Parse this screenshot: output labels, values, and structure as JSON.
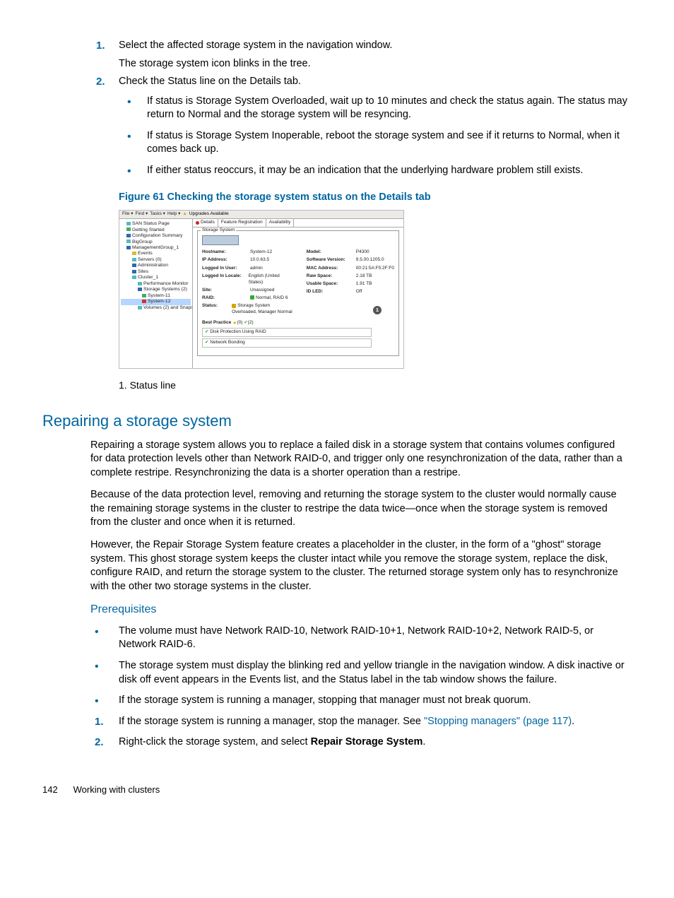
{
  "steps_top": [
    {
      "num": "1.",
      "lines": [
        "Select the affected storage system in the navigation window.",
        "The storage system icon blinks in the tree."
      ]
    },
    {
      "num": "2.",
      "lines": [
        "Check the Status line on the Details tab."
      ],
      "sub": [
        "If status is Storage System Overloaded, wait up to 10 minutes and check the status again. The status may return to Normal and the storage system will be resyncing.",
        "If status is Storage System Inoperable, reboot the storage system and see if it returns to Normal, when it comes back up.",
        "If either status reoccurs, it may be an indication that the underlying hardware problem still exists."
      ]
    }
  ],
  "figure_caption": "Figure 61 Checking the storage system status on the Details tab",
  "menubar": {
    "items": [
      "File ▾",
      "Find ▾",
      "Tasks ▾",
      "Help ▾"
    ],
    "upgrades": "Upgrades Available"
  },
  "tree": [
    {
      "cls": "i1",
      "icon": "icon-cyan",
      "t": "SAN Status Page"
    },
    {
      "cls": "i1",
      "icon": "icon-grn",
      "t": "Getting Started"
    },
    {
      "cls": "i1",
      "icon": "icon-blue",
      "t": "Configuration Summary"
    },
    {
      "cls": "i1",
      "icon": "icon-cyan",
      "t": "BigGroup"
    },
    {
      "cls": "i1",
      "icon": "icon-blue",
      "t": "ManagementGroup_1"
    },
    {
      "cls": "i2",
      "icon": "icon-yel",
      "t": "Events"
    },
    {
      "cls": "i2",
      "icon": "icon-cyan",
      "t": "Servers (0)"
    },
    {
      "cls": "i2",
      "icon": "icon-blue",
      "t": "Administration"
    },
    {
      "cls": "i2",
      "icon": "icon-blue",
      "t": "Sites"
    },
    {
      "cls": "i2",
      "icon": "icon-cyan",
      "t": "Cluster_1"
    },
    {
      "cls": "i3",
      "icon": "icon-cyan",
      "t": "Performance Monitor"
    },
    {
      "cls": "i3",
      "icon": "icon-blue",
      "t": "Storage Systems (2)"
    },
    {
      "cls": "i4",
      "icon": "icon-grn",
      "t": "System-11"
    },
    {
      "cls": "i4 sel",
      "icon": "icon-red",
      "t": "System-12"
    },
    {
      "cls": "i3",
      "icon": "icon-cyan",
      "t": "Volumes (2) and Snaps…"
    }
  ],
  "tabs": [
    {
      "label": "Details",
      "active": true,
      "dot": true
    },
    {
      "label": "Feature Registration",
      "active": false
    },
    {
      "label": "Availability",
      "active": false
    }
  ],
  "fs_legend": "Storage System",
  "kv_left": [
    {
      "k": "Hostname:",
      "v": "System-12",
      "ico": "icon-blue"
    },
    {
      "k": "IP Address:",
      "v": "10.0.63.5"
    },
    {
      "k": "Logged In User:",
      "v": "admin"
    },
    {
      "k": "Logged In Locale:",
      "v": "English (United States)"
    },
    {
      "k": "Site:",
      "v": "Unassigned"
    },
    {
      "k": "RAID:",
      "v": "Normal, RAID 6",
      "ico": "status-ico"
    },
    {
      "k": "Status:",
      "v": "Storage System Overloaded, Manager Normal",
      "ico": "status-ico warn"
    }
  ],
  "kv_right": [
    {
      "k": "Model:",
      "v": "P4300"
    },
    {
      "k": "Software Version:",
      "v": "9.5.00.1205.0"
    },
    {
      "k": "MAC Address:",
      "v": "00:21:5A:F5:2F:F0"
    },
    {
      "k": "Raw Space:",
      "v": "2.18 TB"
    },
    {
      "k": "Usable Space:",
      "v": "1.91 TB"
    },
    {
      "k": "ID LED:",
      "v": "Off"
    }
  ],
  "bp_label": "Best Practice",
  "bp_warn": "(0)",
  "bp_ok": "(2)",
  "bp_items": [
    "Disk Protection Using RAID",
    "Network Bonding"
  ],
  "callout": "1",
  "caption_item": "1. Status line",
  "h2": "Repairing a storage system",
  "paras": [
    "Repairing a storage system allows you to replace a failed disk in a storage system that contains volumes configured for data protection levels other than Network RAID-0, and trigger only one resynchronization of the data, rather than a complete restripe. Resynchronizing the data is a shorter operation than a restripe.",
    "Because of the data protection level, removing and returning the storage system to the cluster would normally cause the remaining storage systems in the cluster to restripe the data twice—once when the storage system is removed from the cluster and once when it is returned.",
    "However, the Repair Storage System feature creates a placeholder in the cluster, in the form of a \"ghost\" storage system. This ghost storage system keeps the cluster intact while you remove the storage system, replace the disk, configure RAID, and return the storage system to the cluster. The returned storage system only has to resynchronize with the other two storage systems in the cluster."
  ],
  "h3": "Prerequisites",
  "prereq_bullets": [
    "The volume must have Network RAID-10, Network RAID-10+1, Network RAID-10+2, Network RAID-5, or Network RAID-6.",
    "The storage system must display the blinking red and yellow triangle in the navigation window. A disk inactive or disk off event appears in the Events list, and the Status label in the tab window shows the failure.",
    "If the storage system is running a manager, stopping that manager must not break quorum."
  ],
  "prereq_steps": [
    {
      "num": "1.",
      "pre": "If the storage system is running a manager, stop the manager. See ",
      "link": "\"Stopping managers\" (page 117)",
      "post": "."
    },
    {
      "num": "2.",
      "pre": "Right-click the storage system, and select ",
      "bold": "Repair Storage System",
      "post": "."
    }
  ],
  "footer": {
    "page": "142",
    "title": "Working with clusters"
  }
}
